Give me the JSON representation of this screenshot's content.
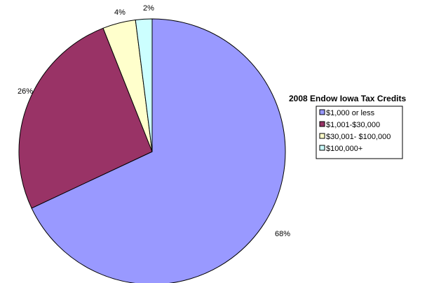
{
  "chart_data": {
    "type": "pie",
    "title": "2008 Endow Iowa Tax Credits",
    "categories": [
      "$1,000 or less",
      "$1,001-$30,000",
      "$30,001- $100,000",
      "$100,000+"
    ],
    "values": [
      68,
      26,
      4,
      2
    ],
    "data_labels": [
      "68%",
      "26%",
      "4%",
      "2%"
    ],
    "colors": [
      "#9999ff",
      "#993366",
      "#ffffcc",
      "#ccffff"
    ],
    "start_angle_deg": 0,
    "direction": "clockwise",
    "legend_position": "right"
  }
}
